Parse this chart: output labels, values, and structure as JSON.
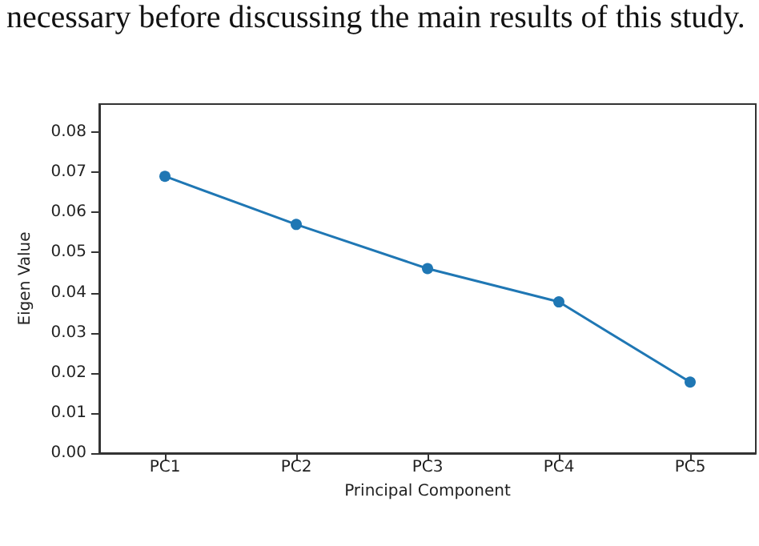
{
  "chart_data": {
    "type": "line",
    "annotations": [
      "necessary before discussing the main results of this study."
    ],
    "xlabel": "Principal Component",
    "ylabel": "Eigen Value",
    "categories": [
      "PC1",
      "PC2",
      "PC3",
      "PC4",
      "PC5"
    ],
    "series": [
      {
        "color": "#1f77b4",
        "values": [
          0.069,
          0.057,
          0.046,
          0.0377,
          0.0177
        ]
      }
    ],
    "ylim": [
      0,
      0.087
    ],
    "yticks": [
      {
        "value": 0,
        "label": "0.00"
      },
      {
        "value": 0.01,
        "label": "0.01"
      },
      {
        "value": 0.02,
        "label": "0.02"
      },
      {
        "value": 0.03,
        "label": "0.03"
      },
      {
        "value": 0.04,
        "label": "0.04"
      },
      {
        "value": 0.05,
        "label": "0.05"
      },
      {
        "value": 0.06,
        "label": "0.06"
      },
      {
        "value": 0.07,
        "label": "0.07"
      },
      {
        "value": 0.08,
        "label": "0.08"
      }
    ],
    "marker": "circle",
    "line_style": "solid"
  }
}
